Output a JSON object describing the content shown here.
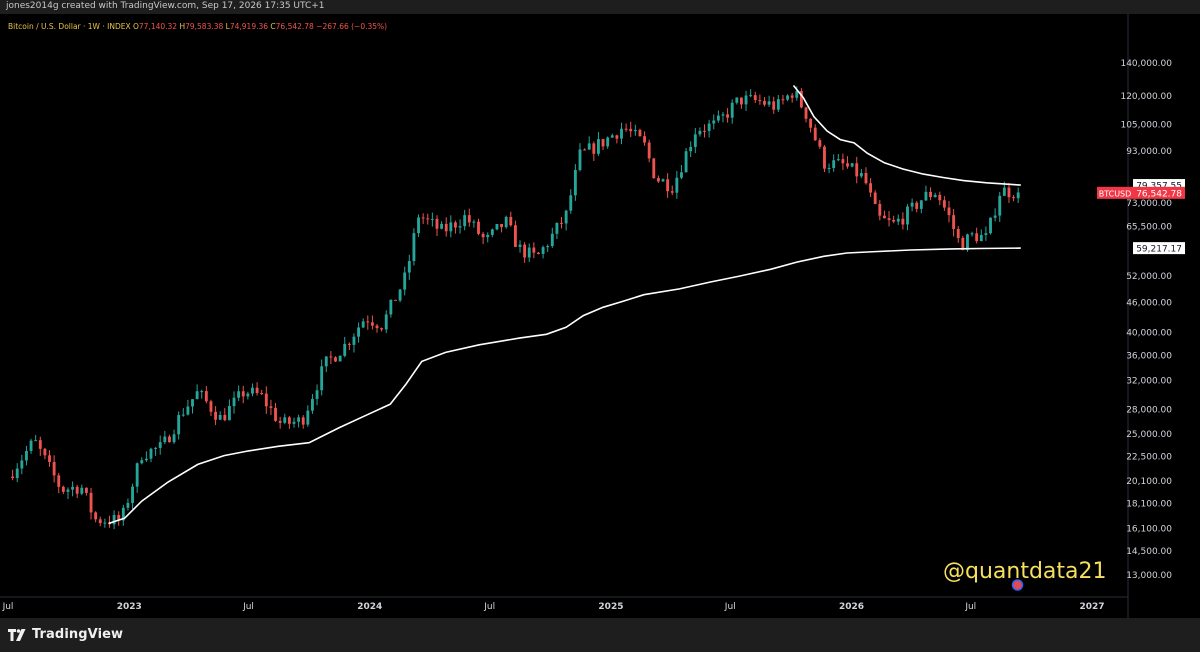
{
  "header": {
    "credit": "jones2014g created with TradingView.com, Sep 17, 2026 17:35 UTC+1"
  },
  "legend": {
    "symbol": "Bitcoin / U.S. Dollar · 1W · INDEX",
    "open_label": "O",
    "open": "77,140.32",
    "high_label": "H",
    "high": "79,583.38",
    "low_label": "L",
    "low": "74,919.36",
    "close_label": "C",
    "close": "76,542.78",
    "change": "−267.66 (−0.35%)"
  },
  "footer": {
    "brand": "TradingView",
    "logo_icon": "tradingview-logo-icon"
  },
  "watermark": "@quantdata21",
  "colors": {
    "up": "#26a69a",
    "down": "#ef5350",
    "line": "#ffffff",
    "axis_text": "#d1d4dc",
    "price_tag": "#f23645"
  },
  "chart_data": {
    "type": "candlestick",
    "y_scale": "log",
    "ylim": [
      12000,
      160000
    ],
    "y_ticks": [
      {
        "value": 140000,
        "label": "140,000.00"
      },
      {
        "value": 120000,
        "label": "120,000.00"
      },
      {
        "value": 105000,
        "label": "105,000.00"
      },
      {
        "value": 93000,
        "label": "93,000.00"
      },
      {
        "value": 73000,
        "label": "73,000.00"
      },
      {
        "value": 65500,
        "label": "65,500.00"
      },
      {
        "value": 52000,
        "label": "52,000.00"
      },
      {
        "value": 46000,
        "label": "46,000.00"
      },
      {
        "value": 40000,
        "label": "40,000.00"
      },
      {
        "value": 36000,
        "label": "36,000.00"
      },
      {
        "value": 32000,
        "label": "32,000.00"
      },
      {
        "value": 28000,
        "label": "28,000.00"
      },
      {
        "value": 25000,
        "label": "25,000.00"
      },
      {
        "value": 22500,
        "label": "22,500.00"
      },
      {
        "value": 20100,
        "label": "20,100.00"
      },
      {
        "value": 18100,
        "label": "18,100.00"
      },
      {
        "value": 16100,
        "label": "16,100.00"
      },
      {
        "value": 14500,
        "label": "14,500.00"
      },
      {
        "value": 13000,
        "label": "13,000.00"
      }
    ],
    "x_ticks": [
      {
        "label": "Jul",
        "date": "2022-07-01"
      },
      {
        "label": "2023",
        "date": "2023-01-01"
      },
      {
        "label": "Jul",
        "date": "2023-07-01"
      },
      {
        "label": "2024",
        "date": "2024-01-01"
      },
      {
        "label": "Jul",
        "date": "2024-07-01"
      },
      {
        "label": "2025",
        "date": "2025-01-01"
      },
      {
        "label": "Jul",
        "date": "2025-07-01"
      },
      {
        "label": "2026",
        "date": "2026-01-01"
      },
      {
        "label": "Jul",
        "date": "2026-07-01"
      },
      {
        "label": "2027",
        "date": "2027-01-01"
      }
    ],
    "xlim": [
      "2022-07-01",
      "2027-01-01"
    ],
    "price_tags": [
      {
        "label": "79,357.55",
        "value": 79357.55,
        "style": "line"
      },
      {
        "symbol": "BTCUSD",
        "label": "76,542.78",
        "value": 76542.78,
        "style": "price"
      },
      {
        "label": "59,217.17",
        "value": 59217.17,
        "style": "line"
      }
    ],
    "close_path": [
      [
        "2022-07-01",
        20500
      ],
      [
        "2022-08-10",
        24200
      ],
      [
        "2022-09-20",
        19300
      ],
      [
        "2022-10-20",
        19600
      ],
      [
        "2022-11-10",
        16800
      ],
      [
        "2022-12-20",
        16700
      ],
      [
        "2023-01-20",
        22800
      ],
      [
        "2023-02-20",
        23500
      ],
      [
        "2023-03-25",
        28000
      ],
      [
        "2023-04-15",
        30300
      ],
      [
        "2023-05-20",
        26800
      ],
      [
        "2023-06-25",
        30500
      ],
      [
        "2023-07-20",
        29800
      ],
      [
        "2023-08-20",
        26100
      ],
      [
        "2023-09-20",
        26600
      ],
      [
        "2023-10-25",
        34500
      ],
      [
        "2023-11-25",
        37800
      ],
      [
        "2023-12-25",
        43000
      ],
      [
        "2024-01-20",
        41500
      ],
      [
        "2024-02-25",
        52000
      ],
      [
        "2024-03-15",
        69000
      ],
      [
        "2024-04-20",
        64000
      ],
      [
        "2024-05-25",
        68500
      ],
      [
        "2024-06-25",
        61000
      ],
      [
        "2024-07-25",
        67000
      ],
      [
        "2024-08-15",
        59000
      ],
      [
        "2024-09-10",
        56500
      ],
      [
        "2024-10-05",
        63000
      ],
      [
        "2024-10-25",
        69000
      ],
      [
        "2024-11-15",
        91000
      ],
      [
        "2024-12-20",
        97000
      ],
      [
        "2025-01-20",
        104000
      ],
      [
        "2025-02-20",
        96000
      ],
      [
        "2025-03-10",
        82000
      ],
      [
        "2025-04-05",
        79000
      ],
      [
        "2025-05-10",
        103000
      ],
      [
        "2025-06-10",
        105000
      ],
      [
        "2025-07-15",
        118000
      ],
      [
        "2025-08-15",
        117000
      ],
      [
        "2025-09-10",
        114000
      ],
      [
        "2025-10-05",
        123000
      ],
      [
        "2025-10-25",
        110000
      ],
      [
        "2025-11-20",
        88000
      ],
      [
        "2025-12-20",
        87000
      ],
      [
        "2026-01-20",
        82000
      ],
      [
        "2026-02-10",
        68000
      ],
      [
        "2026-03-05",
        66000
      ],
      [
        "2026-03-30",
        70000
      ],
      [
        "2026-04-20",
        75000
      ],
      [
        "2026-05-10",
        77000
      ],
      [
        "2026-05-30",
        68000
      ],
      [
        "2026-06-15",
        60000
      ],
      [
        "2026-07-05",
        63000
      ],
      [
        "2026-07-25",
        62000
      ],
      [
        "2026-08-15",
        77500
      ],
      [
        "2026-09-15",
        76542.78
      ]
    ],
    "series": [
      {
        "style": "line",
        "values": [
          [
            "2022-12-01",
            16500
          ],
          [
            "2022-12-25",
            16900
          ],
          [
            "2023-01-20",
            18300
          ],
          [
            "2023-03-01",
            20000
          ],
          [
            "2023-04-15",
            21700
          ],
          [
            "2023-05-25",
            22600
          ],
          [
            "2023-07-01",
            23100
          ],
          [
            "2023-08-15",
            23600
          ],
          [
            "2023-10-01",
            24000
          ],
          [
            "2023-11-15",
            25700
          ],
          [
            "2023-12-25",
            27200
          ],
          [
            "2024-02-01",
            28700
          ],
          [
            "2024-02-25",
            31500
          ],
          [
            "2024-03-20",
            35000
          ],
          [
            "2024-04-25",
            36500
          ],
          [
            "2024-06-15",
            37800
          ],
          [
            "2024-08-15",
            39000
          ],
          [
            "2024-09-25",
            39700
          ],
          [
            "2024-10-25",
            41000
          ],
          [
            "2024-11-20",
            43300
          ],
          [
            "2024-12-20",
            45000
          ],
          [
            "2025-01-20",
            46300
          ],
          [
            "2025-02-20",
            47700
          ],
          [
            "2025-04-15",
            49000
          ],
          [
            "2025-06-01",
            50600
          ],
          [
            "2025-07-15",
            52000
          ],
          [
            "2025-09-01",
            53700
          ],
          [
            "2025-10-10",
            55500
          ],
          [
            "2025-11-20",
            57000
          ],
          [
            "2025-12-25",
            57900
          ],
          [
            "2026-02-10",
            58300
          ],
          [
            "2026-04-01",
            58700
          ],
          [
            "2026-06-01",
            59000
          ],
          [
            "2026-07-15",
            59100
          ],
          [
            "2026-09-15",
            59217.17
          ]
        ]
      },
      {
        "style": "line",
        "values": [
          [
            "2025-10-05",
            126000
          ],
          [
            "2025-10-20",
            119000
          ],
          [
            "2025-11-05",
            109000
          ],
          [
            "2025-11-25",
            102000
          ],
          [
            "2025-12-15",
            98000
          ],
          [
            "2026-01-05",
            96500
          ],
          [
            "2026-01-25",
            92000
          ],
          [
            "2026-02-20",
            88000
          ],
          [
            "2026-03-20",
            85500
          ],
          [
            "2026-04-20",
            83500
          ],
          [
            "2026-05-20",
            82200
          ],
          [
            "2026-06-20",
            81000
          ],
          [
            "2026-07-25",
            80200
          ],
          [
            "2026-09-15",
            79357.55
          ]
        ]
      }
    ]
  }
}
